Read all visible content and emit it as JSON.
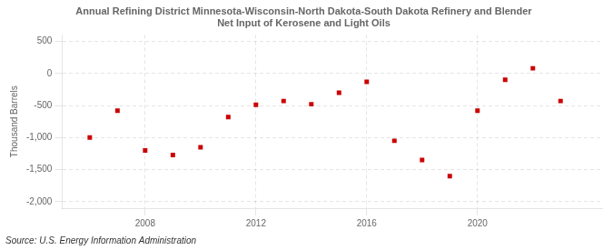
{
  "chart_data": {
    "type": "scatter",
    "title": "Annual Refining District Minnesota-Wisconsin-North Dakota-South Dakota Refinery and Blender\nNet Input of Kerosene and Light Oils",
    "y_label": "Thousand Barrels",
    "annotation": "Source: U.S. Energy Information Administration",
    "x": [
      2006,
      2007,
      2008,
      2009,
      2010,
      2011,
      2012,
      2013,
      2014,
      2015,
      2016,
      2017,
      2018,
      2019,
      2020,
      2021,
      2022,
      2023
    ],
    "values": [
      -1000,
      -580,
      -1200,
      -1270,
      -1150,
      -680,
      -490,
      -430,
      -480,
      -300,
      -130,
      -1050,
      -1350,
      -1600,
      -580,
      -100,
      80,
      -430
    ],
    "color": "#cc0000",
    "marker": "square",
    "xlim": [
      2005.0,
      2024.5
    ],
    "xticks": [
      2008,
      2012,
      2016,
      2020
    ],
    "ylim": [
      -2100,
      600
    ],
    "yticks": [
      {
        "value": -2000,
        "label": "-2,000"
      },
      {
        "value": -1500,
        "label": "-1,500"
      },
      {
        "value": -1000,
        "label": "-1,000"
      },
      -500,
      0,
      500
    ],
    "grid": true
  }
}
